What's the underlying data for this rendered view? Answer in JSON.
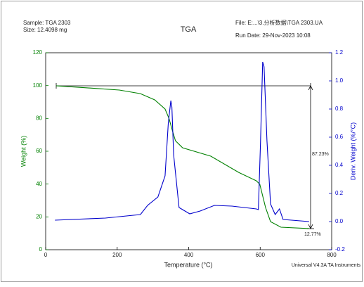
{
  "chart_data": {
    "type": "line",
    "title": "TGA",
    "header_left": [
      "Sample: TGA 2303",
      "Size: 12.4098 mg"
    ],
    "header_right": [
      "File: E:...\\3.分析数据\\TGA 2303.UA",
      "Run Date: 29-Nov-2023 10:08"
    ],
    "footer": "Universal V4.3A TA Instruments",
    "xlabel": "Temperature (°C)",
    "ylabel": "Weight (%)",
    "y2label": "Deriv. Weight (%/°C)",
    "xlim": [
      0,
      800
    ],
    "xticks": [
      0,
      200,
      400,
      600,
      800
    ],
    "ylim": [
      0,
      120
    ],
    "yticks": [
      0,
      20,
      40,
      60,
      80,
      100,
      120
    ],
    "y2lim": [
      -0.2,
      1.2
    ],
    "y2ticks": [
      -0.2,
      {
        "value": 0,
        "label": "0.0"
      },
      0.2,
      0.4,
      0.6,
      0.8,
      {
        "value": 1,
        "label": "1.0"
      },
      1.2
    ],
    "annotations": [
      "87.23%",
      "12.77%"
    ],
    "series": [
      {
        "name": "Weight (%)",
        "color": "#008000",
        "x": [
          29,
          206,
          265,
          305,
          334,
          345,
          354,
          363,
          383,
          462,
          540,
          589,
          599,
          615,
          629,
          658,
          737
        ],
        "values": [
          99.9,
          97.3,
          95.1,
          91.3,
          85.7,
          80,
          72.9,
          66.4,
          62.1,
          57,
          47.1,
          42,
          39.9,
          25.7,
          17.1,
          13.7,
          12.9
        ]
      },
      {
        "name": "Deriv. Weight (%/°C)",
        "color": "#0000cc",
        "axis": "y2",
        "x": [
          26,
          167,
          265,
          285,
          314,
          334,
          343,
          350,
          353,
          358,
          373,
          403,
          432,
          472,
          521,
          589,
          595,
          601,
          607,
          611,
          619,
          629,
          642,
          654,
          664,
          737
        ],
        "values": [
          0.01,
          0.025,
          0.05,
          0.115,
          0.175,
          0.325,
          0.7,
          0.86,
          0.815,
          0.475,
          0.1,
          0.055,
          0.075,
          0.115,
          0.11,
          0.09,
          0.085,
          0.575,
          1.135,
          1.1,
          0.575,
          0.125,
          0.05,
          0.09,
          0.015,
          0.0
        ]
      }
    ]
  }
}
